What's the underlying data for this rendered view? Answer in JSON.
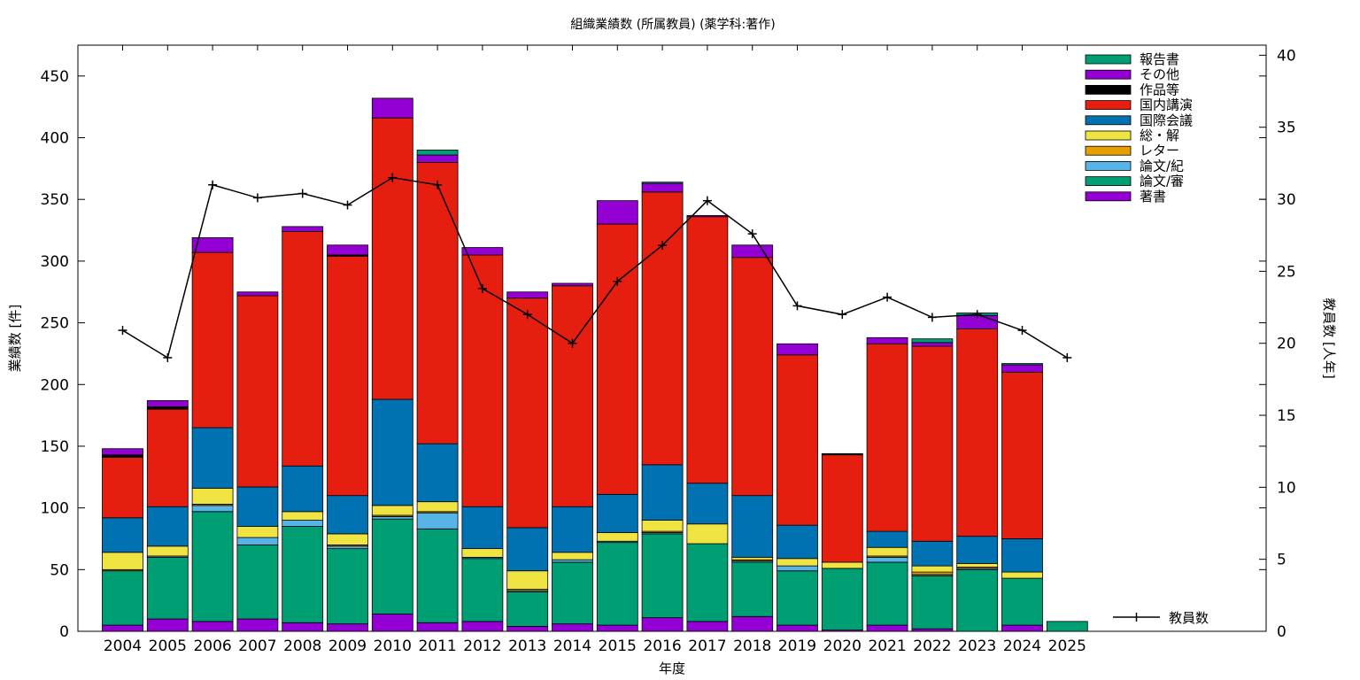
{
  "chart_data": {
    "type": "bar",
    "stacked": true,
    "title": "組織業績数 (所属教員) (薬学科:著作)",
    "xlabel": "年度",
    "ylabel": "業績数 [件]",
    "y2label": "教員数 [人年]",
    "ylim": [
      0,
      475
    ],
    "y2lim": [
      0,
      40.7
    ],
    "yticks": [
      0,
      50,
      100,
      150,
      200,
      250,
      300,
      350,
      400,
      450
    ],
    "y2ticks": [
      0,
      5,
      10,
      15,
      20,
      25,
      30,
      35,
      40
    ],
    "categories": [
      "2004",
      "2005",
      "2006",
      "2007",
      "2008",
      "2009",
      "2010",
      "2011",
      "2012",
      "2013",
      "2014",
      "2015",
      "2016",
      "2017",
      "2018",
      "2019",
      "2020",
      "2021",
      "2022",
      "2023",
      "2024",
      "2025"
    ],
    "series": [
      {
        "name": "著書",
        "color": "#9400d3",
        "values": [
          5,
          10,
          8,
          10,
          7,
          6,
          14,
          7,
          8,
          4,
          6,
          5,
          11,
          8,
          12,
          5,
          1,
          5,
          2,
          0,
          5,
          0
        ]
      },
      {
        "name": "論文/審",
        "color": "#009e73",
        "values": [
          44,
          50,
          89,
          60,
          78,
          61,
          77,
          76,
          51,
          28,
          50,
          67,
          68,
          63,
          44,
          44,
          50,
          51,
          43,
          50,
          38,
          8
        ]
      },
      {
        "name": "論文/紀",
        "color": "#56b4e9",
        "values": [
          0,
          1,
          5,
          6,
          5,
          2,
          2,
          13,
          1,
          1,
          2,
          1,
          1,
          0,
          1,
          4,
          0,
          4,
          1,
          1,
          0,
          0
        ]
      },
      {
        "name": "レター",
        "color": "#e69f00",
        "values": [
          1,
          0,
          1,
          0,
          0,
          1,
          1,
          1,
          0,
          1,
          0,
          0,
          1,
          0,
          1,
          0,
          0,
          1,
          2,
          1,
          0,
          0
        ]
      },
      {
        "name": "総・解",
        "color": "#f0e442",
        "values": [
          14,
          8,
          13,
          9,
          7,
          9,
          8,
          8,
          7,
          15,
          6,
          7,
          9,
          16,
          2,
          6,
          5,
          7,
          5,
          3,
          5,
          0
        ]
      },
      {
        "name": "国際会議",
        "color": "#0072b2",
        "values": [
          28,
          32,
          49,
          32,
          37,
          31,
          86,
          47,
          34,
          35,
          37,
          31,
          45,
          33,
          50,
          27,
          0,
          13,
          20,
          22,
          27,
          0
        ]
      },
      {
        "name": "国内講演",
        "color": "#e51e10",
        "values": [
          49,
          79,
          142,
          155,
          190,
          194,
          228,
          228,
          204,
          186,
          179,
          219,
          221,
          216,
          193,
          138,
          87,
          152,
          158,
          168,
          135,
          0
        ]
      },
      {
        "name": "作品等",
        "color": "#000000",
        "values": [
          2,
          2,
          0,
          0,
          0,
          1,
          0,
          0,
          0,
          0,
          0,
          0,
          0,
          0,
          0,
          0,
          1,
          0,
          0,
          0,
          0,
          0
        ]
      },
      {
        "name": "その他",
        "color": "#9400d3",
        "values": [
          5,
          5,
          12,
          3,
          4,
          8,
          16,
          6,
          6,
          5,
          2,
          19,
          7,
          1,
          10,
          9,
          0,
          5,
          3,
          11,
          6,
          0
        ]
      },
      {
        "name": "報告書",
        "color": "#009e73",
        "values": [
          0,
          0,
          0,
          0,
          0,
          0,
          0,
          4,
          0,
          0,
          0,
          0,
          1,
          0,
          0,
          0,
          0,
          0,
          3,
          2,
          1,
          0
        ]
      }
    ],
    "line": {
      "name": "教員数",
      "axis": "y2",
      "values": [
        20.9,
        19.0,
        31.0,
        30.1,
        30.4,
        29.6,
        31.5,
        31.0,
        23.8,
        22.0,
        20.0,
        24.3,
        26.8,
        29.9,
        27.6,
        22.6,
        22.0,
        23.2,
        21.8,
        22.0,
        20.9,
        19.0
      ]
    },
    "legend_position": "top-right",
    "line_legend_position": "bottom-right",
    "grid": false
  }
}
